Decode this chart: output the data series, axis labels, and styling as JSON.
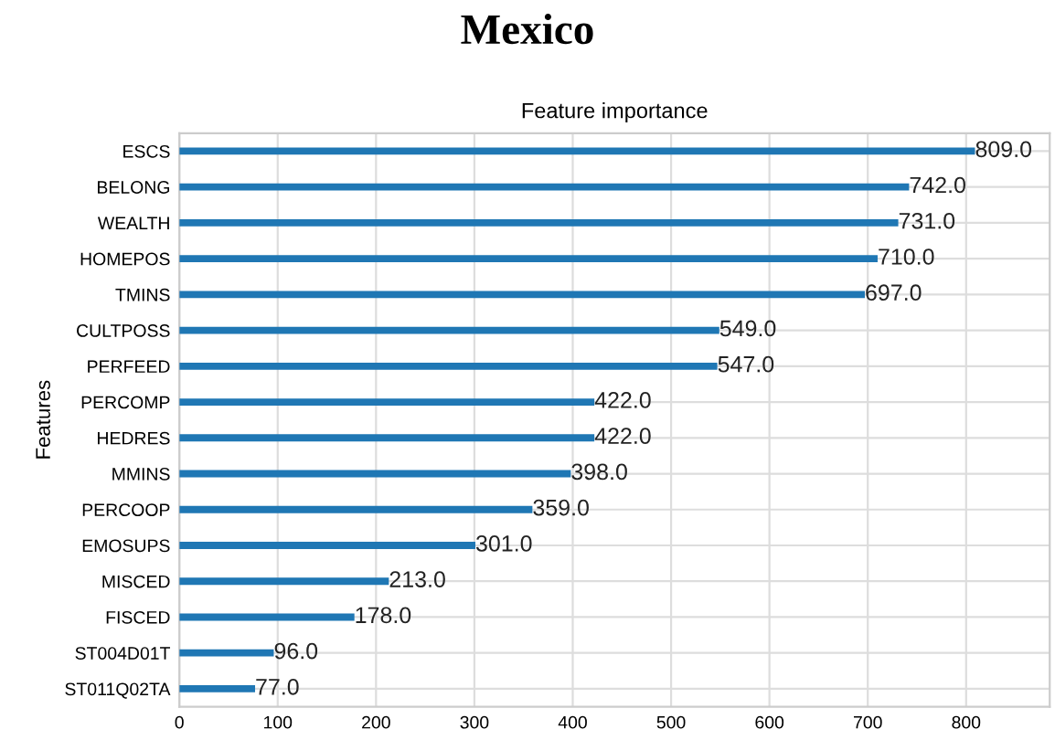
{
  "chart_data": {
    "type": "bar",
    "orientation": "horizontal",
    "title": "Mexico",
    "subtitle": "Feature importance",
    "ylabel": "Features",
    "categories": [
      "ESCS",
      "BELONG",
      "WEALTH",
      "HOMEPOS",
      "TMINS",
      "CULTPOSS",
      "PERFEED",
      "PERCOMP",
      "HEDRES",
      "MMINS",
      "PERCOOP",
      "EMOSUPS",
      "MISCED",
      "FISCED",
      "ST004D01T",
      "ST011Q02TA"
    ],
    "values": [
      809.0,
      742.0,
      731.0,
      710.0,
      697.0,
      549.0,
      547.0,
      422.0,
      422.0,
      398.0,
      359.0,
      301.0,
      213.0,
      178.0,
      96.0,
      77.0
    ],
    "value_labels": [
      "809.0",
      "742.0",
      "731.0",
      "710.0",
      "697.0",
      "549.0",
      "547.0",
      "422.0",
      "422.0",
      "398.0",
      "359.0",
      "301.0",
      "213.0",
      "178.0",
      "96.0",
      "77.0"
    ],
    "color": "#1f77b4",
    "xlim": [
      0,
      885
    ],
    "xticks": [
      0,
      100,
      200,
      300,
      400,
      500,
      600,
      700,
      800
    ],
    "grid": true
  }
}
